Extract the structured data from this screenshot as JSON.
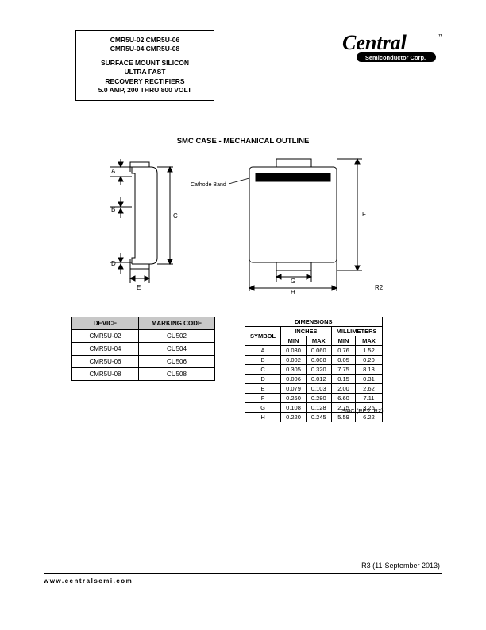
{
  "header": {
    "parts_row1": "CMR5U-02    CMR5U-06",
    "parts_row2": "CMR5U-04    CMR5U-08",
    "desc_line1": "SURFACE MOUNT SILICON",
    "desc_line2": "ULTRA FAST",
    "desc_line3": "RECOVERY RECTIFIERS",
    "desc_line4": "5.0 AMP, 200 THRU 800 VOLT"
  },
  "logo": {
    "brand": "Central",
    "sub": "Semiconductor Corp."
  },
  "section_title": "SMC CASE - MECHANICAL OUTLINE",
  "diagram": {
    "cathode_label": "Cathode Band",
    "rev_label": "R2",
    "labels": [
      "A",
      "B",
      "C",
      "D",
      "E",
      "F",
      "G",
      "H"
    ]
  },
  "marking_table": {
    "headers": [
      "DEVICE",
      "MARKING CODE"
    ],
    "rows": [
      [
        "CMR5U-02",
        "CU502"
      ],
      [
        "CMR5U-04",
        "CU504"
      ],
      [
        "CMR5U-06",
        "CU506"
      ],
      [
        "CMR5U-08",
        "CU508"
      ]
    ]
  },
  "dim_table": {
    "title": "DIMENSIONS",
    "group1": "INCHES",
    "group2": "MILLIMETERS",
    "sym": "SYMBOL",
    "min": "MIN",
    "max": "MAX",
    "rows": [
      [
        "A",
        "0.030",
        "0.060",
        "0.76",
        "1.52"
      ],
      [
        "B",
        "0.002",
        "0.008",
        "0.05",
        "0.20"
      ],
      [
        "C",
        "0.305",
        "0.320",
        "7.75",
        "8.13"
      ],
      [
        "D",
        "0.006",
        "0.012",
        "0.15",
        "0.31"
      ],
      [
        "E",
        "0.079",
        "0.103",
        "2.00",
        "2.62"
      ],
      [
        "F",
        "0.260",
        "0.280",
        "6.60",
        "7.11"
      ],
      [
        "G",
        "0.108",
        "0.128",
        "2.75",
        "3.25"
      ],
      [
        "H",
        "0.220",
        "0.245",
        "5.59",
        "6.22"
      ]
    ],
    "caption": "SMC (REV: R2)"
  },
  "revision": "R3 (11-September 2013)",
  "footer_url": "www.centralsemi.com"
}
